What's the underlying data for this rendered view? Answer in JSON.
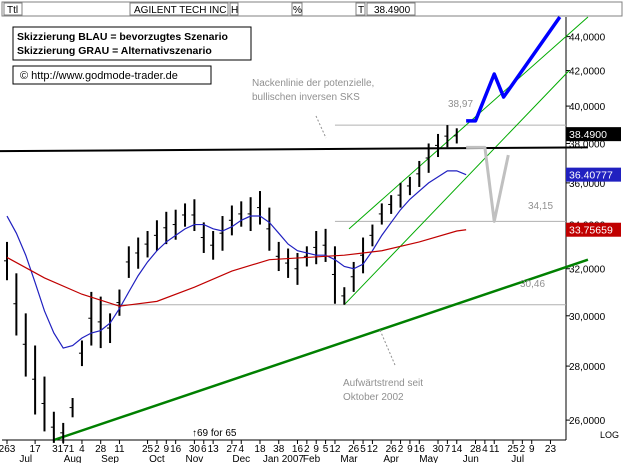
{
  "topbar": {
    "period_label": "Ttl",
    "instrument": "AGILENT TECH INC",
    "h_label": "H",
    "pct_label": "%",
    "t_label": "T",
    "last_price": "38.4900"
  },
  "annotations": {
    "scenario_blue": "Skizzierung BLAU = bevorzugtes Szenario",
    "scenario_grey": "Skizzierung GRAU = Alternativszenario",
    "copyright": "© http://www.godmode-trader.de",
    "neckline_line1": "Nackenlinie der potenzielle,",
    "neckline_line2": "bullischen inversen SKS",
    "uptrend_line1": "Aufwärtstrend seit",
    "uptrend_line2": "Oktober 2002",
    "value_3897": "38,97",
    "value_3415": "34,15",
    "value_3046": "30,46",
    "footnote": "↑69 for 65",
    "log_label": "LOG"
  },
  "colors": {
    "price_bars": "#000000",
    "bar_highlight": "#cc0000",
    "ma_short": "#2020c0",
    "ma_long": "#c00000",
    "neckline": "#000000",
    "uptrend": "#008000",
    "channel": "#00aa00",
    "scenario_blue": "#0000ff",
    "scenario_grey": "#c0c0c0",
    "price_tag": "#000000",
    "ma_short_tag": "#2020c0",
    "ma_long_tag": "#c00000"
  },
  "chart_data": {
    "type": "line",
    "title": "AGILENT TECH INC",
    "ylim": [
      25.3,
      45.2
    ],
    "y_scale": "log",
    "grid": false,
    "y_ticks": [
      "26,0000",
      "28,0000",
      "30,0000",
      "32,0000",
      "34,0000",
      "36,0000",
      "38,0000",
      "40,0000",
      "42,0000",
      "44,0000"
    ],
    "y_tick_values": [
      26,
      28,
      30,
      32,
      34,
      36,
      38,
      40,
      42,
      44
    ],
    "x_day_labels": [
      {
        "t": "263",
        "i": 0
      },
      {
        "t": "17",
        "i": 3
      },
      {
        "t": "3171",
        "i": 6
      },
      {
        "t": "4",
        "i": 8
      },
      {
        "t": "28",
        "i": 10
      },
      {
        "t": "11",
        "i": 12
      },
      {
        "t": "25",
        "i": 15
      },
      {
        "t": "2",
        "i": 16
      },
      {
        "t": "9",
        "i": 17
      },
      {
        "t": "16",
        "i": 18
      },
      {
        "t": "30",
        "i": 20
      },
      {
        "t": "6",
        "i": 21
      },
      {
        "t": "13",
        "i": 22
      },
      {
        "t": "27",
        "i": 24
      },
      {
        "t": "4",
        "i": 25
      },
      {
        "t": "18",
        "i": 27
      },
      {
        "t": "38",
        "i": 29
      },
      {
        "t": "16",
        "i": 31
      },
      {
        "t": "2",
        "i": 32
      },
      {
        "t": "9",
        "i": 33
      },
      {
        "t": "5",
        "i": 34
      },
      {
        "t": "12",
        "i": 35
      },
      {
        "t": "26",
        "i": 37
      },
      {
        "t": "5",
        "i": 38
      },
      {
        "t": "12",
        "i": 39
      },
      {
        "t": "26",
        "i": 41
      },
      {
        "t": "2",
        "i": 42
      },
      {
        "t": "9",
        "i": 43
      },
      {
        "t": "16",
        "i": 44
      },
      {
        "t": "30",
        "i": 46
      },
      {
        "t": "7",
        "i": 47
      },
      {
        "t": "14",
        "i": 48
      },
      {
        "t": "28",
        "i": 50
      },
      {
        "t": "4",
        "i": 51
      },
      {
        "t": "11",
        "i": 52
      },
      {
        "t": "25",
        "i": 54
      },
      {
        "t": "2",
        "i": 55
      },
      {
        "t": "9",
        "i": 56
      },
      {
        "t": "23",
        "i": 58
      }
    ],
    "x_month_labels": [
      {
        "t": "Jul",
        "i": 2
      },
      {
        "t": "Aug",
        "i": 7
      },
      {
        "t": "Sep",
        "i": 11
      },
      {
        "t": "Oct",
        "i": 16
      },
      {
        "t": "Nov",
        "i": 20
      },
      {
        "t": "Dec",
        "i": 25
      },
      {
        "t": "Jan 2007",
        "i": 29.5
      },
      {
        "t": "Feb",
        "i": 32.5
      },
      {
        "t": "Mar",
        "i": 36.5
      },
      {
        "t": "Apr",
        "i": 41
      },
      {
        "t": "May",
        "i": 45
      },
      {
        "t": "Jun",
        "i": 49.5
      },
      {
        "t": "Jul",
        "i": 54.5
      }
    ],
    "series": [
      {
        "name": "Price",
        "kind": "bars",
        "x": [
          0,
          1,
          2,
          3,
          4,
          5,
          6,
          7,
          8,
          9,
          10,
          11,
          12,
          13,
          14,
          15,
          16,
          17,
          18,
          19,
          20,
          21,
          22,
          23,
          24,
          25,
          26,
          27,
          28,
          29,
          30,
          31,
          32,
          33,
          34,
          35,
          36,
          37,
          38,
          39,
          40,
          41,
          42,
          43,
          44,
          45,
          46,
          47,
          48
        ],
        "high": [
          33.2,
          31.8,
          30.1,
          28.8,
          27.6,
          26.3,
          25.9,
          26.8,
          29.0,
          31.0,
          30.8,
          30.1,
          31.1,
          33.0,
          33.4,
          33.7,
          34.2,
          34.6,
          34.7,
          35.0,
          35.2,
          34.1,
          33.7,
          34.4,
          34.9,
          35.1,
          35.3,
          35.6,
          34.8,
          33.2,
          32.9,
          32.7,
          33.0,
          33.7,
          33.8,
          33.0,
          31.2,
          32.3,
          33.4,
          34.0,
          35.0,
          35.4,
          36.0,
          36.3,
          37.1,
          38.0,
          38.5,
          38.97,
          38.8
        ],
        "low": [
          31.5,
          29.2,
          27.6,
          26.2,
          25.6,
          25.2,
          25.2,
          26.1,
          28.0,
          28.8,
          28.7,
          28.9,
          30.0,
          31.6,
          32.0,
          32.5,
          32.8,
          33.1,
          33.3,
          33.9,
          33.7,
          32.7,
          32.4,
          32.8,
          33.5,
          33.9,
          33.7,
          34.0,
          32.8,
          31.9,
          31.6,
          31.3,
          32.1,
          32.2,
          32.3,
          30.5,
          30.46,
          31.0,
          31.8,
          33.0,
          34.0,
          34.5,
          34.8,
          35.4,
          35.8,
          36.5,
          37.3,
          37.8,
          38.0
        ]
      },
      {
        "name": "MA short",
        "kind": "line",
        "x": [
          0,
          1,
          2,
          3,
          4,
          5,
          6,
          7,
          8,
          9,
          10,
          11,
          12,
          13,
          14,
          15,
          16,
          17,
          18,
          19,
          20,
          21,
          22,
          23,
          24,
          25,
          26,
          27,
          28,
          29,
          30,
          31,
          32,
          33,
          34,
          35,
          36,
          37,
          38,
          39,
          40,
          41,
          42,
          43,
          44,
          45,
          46,
          47,
          48,
          49
        ],
        "values": [
          34.4,
          33.6,
          32.6,
          31.4,
          30.2,
          29.3,
          28.7,
          28.8,
          29.1,
          29.3,
          29.4,
          29.7,
          30.3,
          31.0,
          31.7,
          32.3,
          32.8,
          33.2,
          33.5,
          33.8,
          34.0,
          34.0,
          33.8,
          33.7,
          33.9,
          34.2,
          34.4,
          34.4,
          34.1,
          33.6,
          33.1,
          32.8,
          32.7,
          32.6,
          32.6,
          32.4,
          32.1,
          32.0,
          32.2,
          32.8,
          33.5,
          34.1,
          34.7,
          35.2,
          35.6,
          36.0,
          36.3,
          36.6,
          36.6,
          36.41
        ]
      },
      {
        "name": "MA long",
        "kind": "line",
        "x": [
          0,
          4,
          8,
          12,
          16,
          20,
          24,
          28,
          32,
          36,
          40,
          44,
          48,
          49
        ],
        "values": [
          32.5,
          31.6,
          30.9,
          30.4,
          30.6,
          31.2,
          31.9,
          32.4,
          32.5,
          32.6,
          32.8,
          33.2,
          33.7,
          33.76
        ]
      }
    ],
    "price_tags": {
      "last": "38.4900",
      "ma_short": "36.40777",
      "ma_long": "33.75659"
    },
    "support_levels": [
      {
        "label": "30,46",
        "value": 30.46
      },
      {
        "label": "34,15",
        "value": 34.15
      },
      {
        "label": "38,97",
        "value": 38.97
      }
    ],
    "drawings": {
      "neckline": {
        "from": [
          -1,
          37.6
        ],
        "to": [
          62,
          37.8
        ]
      },
      "uptrend": {
        "from": [
          5,
          25.3
        ],
        "to": [
          62,
          32.4
        ]
      },
      "channel_lower": {
        "from": [
          36,
          30.46
        ],
        "to": [
          60,
          42
        ]
      },
      "channel_upper": {
        "from": [
          36.5,
          33.8
        ],
        "to": [
          62,
          45.2
        ]
      },
      "blue_scenario": [
        [
          49,
          39.2
        ],
        [
          50,
          39.2
        ],
        [
          52,
          41.8
        ],
        [
          53,
          40.5
        ],
        [
          59,
          45.2
        ]
      ],
      "grey_scenario": [
        [
          49,
          37.8
        ],
        [
          51,
          37.8
        ],
        [
          52,
          34.15
        ],
        [
          53.5,
          37.4
        ]
      ]
    }
  }
}
